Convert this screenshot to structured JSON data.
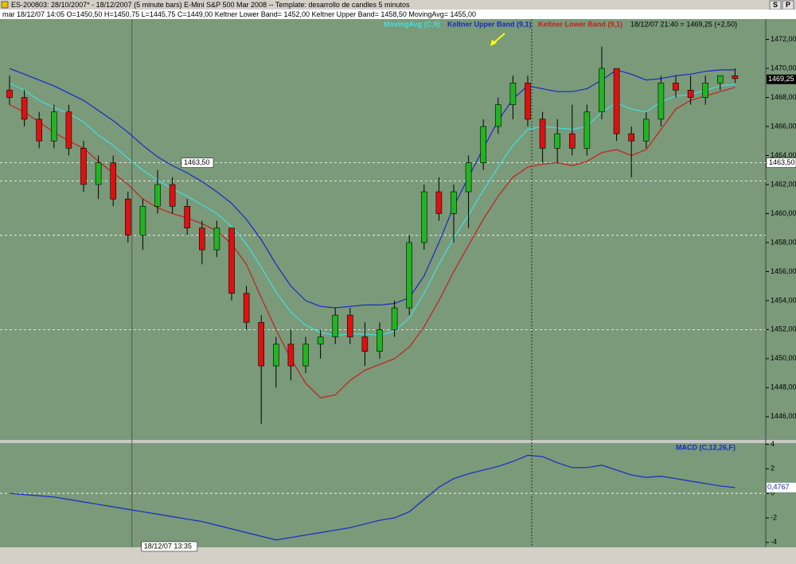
{
  "window": {
    "title": "ES-200803:  28/10/2007* - 18/12/2007  (5 minute bars)   E-Mini S&P 500 Mar 2008  --  Template: desarrollo de candles 5 minutos",
    "info_bar": "mar   18/12/07 14:05  O=1450,50  H=1450,75  L=1445,75  C=1449,00  Keltner Lower Band= 1452,00  Keltner Upper Band= 1458,50  MovingAvg= 1455,00",
    "buttons": [
      "S",
      "P"
    ],
    "readout": "18/12/07 21:40 = 1469,25 (+2,50)"
  },
  "chart_data": [
    {
      "type": "candlestick",
      "background": "#7a9a7a",
      "up_color": "#22b422",
      "down_color": "#e01010",
      "categories": [
        null,
        null,
        null,
        null,
        null,
        null,
        null,
        null,
        null,
        null,
        null,
        null,
        null,
        null,
        null,
        null,
        null,
        null,
        null,
        null,
        null,
        null,
        null,
        null,
        null,
        null,
        null,
        null,
        null,
        null,
        null,
        null,
        null,
        null,
        null,
        null,
        null,
        null,
        null,
        null,
        null,
        null,
        null,
        null,
        null,
        null,
        null,
        null,
        null,
        null
      ],
      "open": [
        1468.5,
        1468,
        1466.5,
        1465,
        1467,
        1464.5,
        1462,
        1463.5,
        1461,
        1458.5,
        1460.5,
        1462,
        1460.5,
        1459,
        1457.5,
        1459,
        1454.5,
        1452.5,
        1449.5,
        1451,
        1449.5,
        1451,
        1451.5,
        1453,
        1451.5,
        1450.5,
        1452,
        1453.5,
        1458,
        1461.5,
        1460,
        1461.5,
        1463.5,
        1466,
        1467.5,
        1469,
        1466.5,
        1464.5,
        1465.5,
        1464.5,
        1467,
        1470,
        1465.5,
        1465,
        1466.5,
        1469,
        1468.5,
        1468,
        1469,
        1469.5
      ],
      "high": [
        1469.5,
        1468.5,
        1467,
        1467.5,
        1467.5,
        1465,
        1464,
        1464,
        1461.5,
        1461,
        1463,
        1462.5,
        1461,
        1459.5,
        1459.5,
        1459,
        1455,
        1453,
        1451.5,
        1452,
        1451.5,
        1452,
        1453.5,
        1453.5,
        1452.5,
        1452.5,
        1454,
        1458.5,
        1462,
        1462.5,
        1462,
        1464,
        1466.5,
        1468,
        1469.5,
        1469.5,
        1467,
        1466.5,
        1467.5,
        1467.5,
        1471.5,
        1470,
        1466,
        1467,
        1469.5,
        1469.5,
        1469.5,
        1469.5,
        1469.5,
        1470
      ],
      "low": [
        1467.5,
        1466,
        1464.5,
        1464.5,
        1464,
        1461.5,
        1461,
        1460.5,
        1458,
        1457.5,
        1460,
        1460,
        1458.5,
        1456.5,
        1457,
        1454,
        1452,
        1445.5,
        1448,
        1448.5,
        1449,
        1450,
        1451,
        1451,
        1449.5,
        1450,
        1451.5,
        1453,
        1457.5,
        1459.5,
        1458,
        1459,
        1463,
        1465.5,
        1466.5,
        1466,
        1463.5,
        1463.5,
        1464,
        1464,
        1466.5,
        1465,
        1462.5,
        1464.5,
        1466,
        1468,
        1467.5,
        1467.5,
        1468.5,
        1469
      ],
      "close": [
        1468,
        1466.5,
        1465,
        1467,
        1464.5,
        1462,
        1463.5,
        1461,
        1458.5,
        1460.5,
        1462,
        1460.5,
        1459,
        1457.5,
        1459,
        1454.5,
        1452.5,
        1449.5,
        1451,
        1449.5,
        1451,
        1451.5,
        1453,
        1451.5,
        1450.5,
        1452,
        1453.5,
        1458,
        1461.5,
        1460,
        1461.5,
        1463.5,
        1466,
        1467.5,
        1469,
        1466.5,
        1464.5,
        1465.5,
        1464.5,
        1467,
        1470,
        1465.5,
        1465,
        1466.5,
        1469,
        1468.5,
        1468,
        1469,
        1469.5,
        1469.3
      ],
      "series": [
        {
          "name": "MovingAvg (C,9)",
          "color": "#40e0e0",
          "values": [
            1469,
            1468.5,
            1467.8,
            1467.3,
            1466.9,
            1466.3,
            1465.4,
            1464.7,
            1463.8,
            1463,
            1462.3,
            1461.7,
            1461.2,
            1460.6,
            1460,
            1459.1,
            1457.9,
            1456.3,
            1454.6,
            1453.2,
            1452.3,
            1451.8,
            1451.6,
            1451.7,
            1451.7,
            1451.6,
            1451.9,
            1452.8,
            1454.5,
            1456.5,
            1458.3,
            1459.9,
            1461.6,
            1463.2,
            1464.7,
            1465.8,
            1466,
            1465.9,
            1465.8,
            1466,
            1467,
            1467.6,
            1467.2,
            1467,
            1467.7,
            1468.1,
            1468.2,
            1468.5,
            1468.8,
            1468.9
          ]
        },
        {
          "name": "Keltner Upper Band (9,1)",
          "color": "#1a28c8",
          "values": [
            1470,
            1469.6,
            1469.2,
            1468.8,
            1468.3,
            1467.8,
            1467.1,
            1466.4,
            1465.6,
            1464.7,
            1463.9,
            1463.3,
            1462.8,
            1462.2,
            1461.5,
            1460.7,
            1459.6,
            1458.2,
            1456.5,
            1455,
            1454,
            1453.6,
            1453.5,
            1453.6,
            1453.7,
            1453.7,
            1453.8,
            1454.2,
            1455.7,
            1458,
            1460.5,
            1462.5,
            1464.5,
            1466.4,
            1467.9,
            1468.8,
            1468.6,
            1468.4,
            1468.4,
            1468.6,
            1469.2,
            1469.9,
            1469.6,
            1469.2,
            1469.3,
            1469.5,
            1469.6,
            1469.8,
            1469.9,
            1469.9
          ]
        },
        {
          "name": "Keltner Lower Band (9,1)",
          "color": "#c81e1e",
          "values": [
            1467.5,
            1467,
            1466.3,
            1465.6,
            1465,
            1464.5,
            1463.6,
            1462.8,
            1462,
            1461,
            1460.4,
            1460,
            1459.7,
            1459.3,
            1458.8,
            1457.9,
            1456.5,
            1454.2,
            1452,
            1450,
            1448.3,
            1447.3,
            1447.5,
            1448.5,
            1449.2,
            1449.6,
            1450,
            1450.8,
            1452.2,
            1454,
            1456,
            1457.8,
            1459.6,
            1461.2,
            1462.5,
            1463.2,
            1463.4,
            1463.5,
            1463.3,
            1463.6,
            1464.2,
            1464.4,
            1464,
            1464.4,
            1465.8,
            1467.2,
            1467.8,
            1468.1,
            1468.4,
            1468.7
          ]
        }
      ],
      "ylim": [
        1444.4,
        1473.4
      ],
      "yticks": [
        {
          "value": 1446,
          "label": "1446,00"
        },
        {
          "value": 1448,
          "label": "1448,00"
        },
        {
          "value": 1450,
          "label": "1450,00"
        },
        {
          "value": 1452,
          "label": "1452,00"
        },
        {
          "value": 1454,
          "label": "1454,00"
        },
        {
          "value": 1456,
          "label": "1456,00"
        },
        {
          "value": 1458,
          "label": "1458,00"
        },
        {
          "value": 1460,
          "label": "1460,00"
        },
        {
          "value": 1462,
          "label": "1462,00"
        },
        {
          "value": 1464,
          "label": "1464,00"
        },
        {
          "value": 1466,
          "label": "1466,00"
        },
        {
          "value": 1468,
          "label": "1468,00"
        },
        {
          "value": 1470,
          "label": "1470,00"
        },
        {
          "value": 1472,
          "label": "1472,00"
        }
      ],
      "hlines": [
        {
          "value": 1463.5,
          "label": "1463,50"
        },
        1462.25,
        1458.5,
        1452
      ],
      "last_price": {
        "value": 1469.25,
        "label": "1469,25"
      }
    },
    {
      "type": "line",
      "background": "#7a9a7a",
      "categories": [
        null,
        null,
        null,
        null,
        null,
        null,
        null,
        null,
        "18/12/07 13:35",
        null,
        null,
        null,
        null,
        null,
        null,
        null,
        null,
        null,
        null,
        null,
        null,
        null,
        null,
        null,
        null,
        null,
        null,
        null,
        null,
        null,
        null,
        null,
        null,
        null,
        null,
        null,
        null,
        null,
        null,
        null,
        null,
        null,
        null,
        null,
        null,
        null,
        null,
        null,
        null,
        null
      ],
      "series": [
        {
          "name": "MACD (C,12,26,F)",
          "color": "#1a28c8",
          "values": [
            0,
            -0.1,
            -0.2,
            -0.3,
            -0.5,
            -0.7,
            -0.9,
            -1.1,
            -1.3,
            -1.5,
            -1.7,
            -1.9,
            -2.1,
            -2.3,
            -2.6,
            -2.9,
            -3.2,
            -3.5,
            -3.8,
            -3.6,
            -3.4,
            -3.2,
            -3,
            -2.8,
            -2.5,
            -2.2,
            -2,
            -1.5,
            -0.5,
            0.5,
            1.2,
            1.6,
            1.9,
            2.2,
            2.6,
            3.1,
            3,
            2.5,
            2.1,
            2.1,
            2.3,
            1.9,
            1.5,
            1.3,
            1.4,
            1.2,
            1,
            0.8,
            0.6,
            0.4767
          ],
          "value_labels": [
            null,
            null,
            null,
            null,
            null,
            null,
            null,
            null,
            null,
            null,
            null,
            null,
            null,
            null,
            null,
            null,
            null,
            null,
            null,
            null,
            null,
            null,
            null,
            null,
            null,
            null,
            null,
            null,
            null,
            null,
            null,
            null,
            null,
            null,
            null,
            null,
            null,
            null,
            null,
            null,
            null,
            null,
            null,
            null,
            null,
            null,
            null,
            null,
            null,
            "0,4767"
          ]
        }
      ],
      "ylim": [
        -4.4,
        4.1
      ],
      "yticks": [
        -4,
        -2,
        0,
        2,
        4
      ],
      "hlines": [
        0
      ]
    }
  ]
}
